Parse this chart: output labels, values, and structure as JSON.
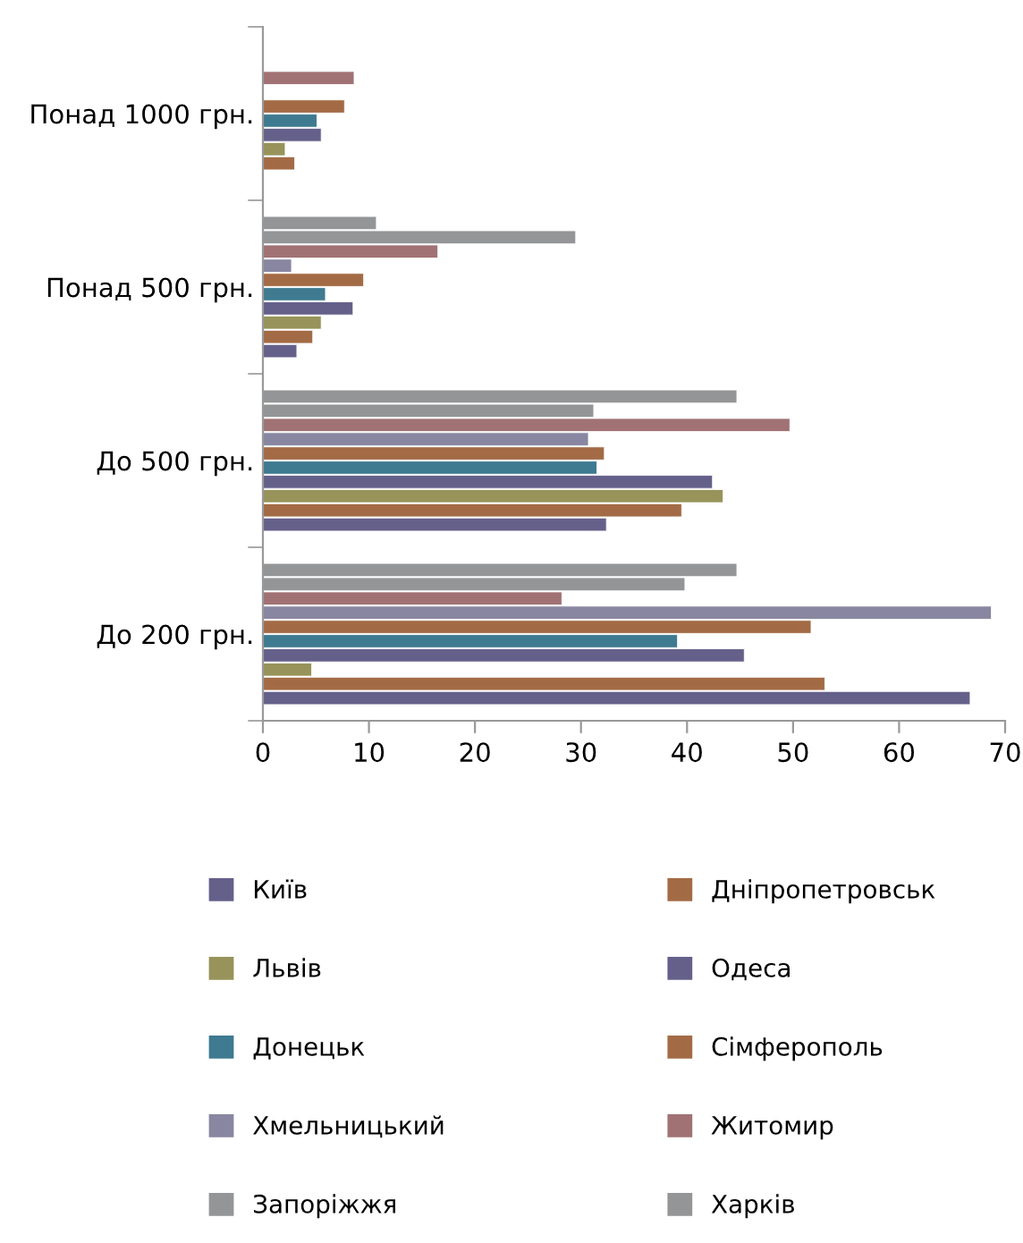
{
  "chart_data": {
    "type": "bar",
    "orientation": "horizontal",
    "categories": [
      "Понад 1000 грн.",
      "Понад 500 грн.",
      "До 500 грн.",
      "До 200 грн."
    ],
    "series": [
      {
        "name": "Київ",
        "color": "#65608a",
        "values": [
          null,
          3.2,
          32.4,
          66.7
        ]
      },
      {
        "name": "Дніпропетровськ",
        "color": "#a36b45",
        "values": [
          3.0,
          4.7,
          39.5,
          53.0
        ]
      },
      {
        "name": "Львів",
        "color": "#97935a",
        "values": [
          2.1,
          5.5,
          43.4,
          4.6
        ]
      },
      {
        "name": "Одеса",
        "color": "#65608a",
        "values": [
          5.5,
          8.5,
          42.4,
          45.4
        ]
      },
      {
        "name": "Донецьк",
        "color": "#3e7a90",
        "values": [
          5.1,
          5.9,
          31.5,
          39.1
        ]
      },
      {
        "name": "Сімферополь",
        "color": "#a36b45",
        "values": [
          7.7,
          9.5,
          32.2,
          51.7
        ]
      },
      {
        "name": "Хмельницький",
        "color": "#8886a0",
        "values": [
          null,
          2.7,
          30.7,
          68.7
        ]
      },
      {
        "name": "Житомир",
        "color": "#a17274",
        "values": [
          8.6,
          16.5,
          49.7,
          28.2
        ]
      },
      {
        "name": "Запоріжжя",
        "color": "#949597",
        "values": [
          null,
          29.5,
          31.2,
          39.8
        ]
      },
      {
        "name": "Харків",
        "color": "#949597",
        "values": [
          null,
          10.7,
          44.7,
          44.7
        ]
      }
    ],
    "xlim": [
      0,
      70
    ],
    "xticks": [
      0,
      10,
      20,
      30,
      40,
      50,
      60,
      70
    ],
    "grid": false,
    "legend": "bottom"
  }
}
